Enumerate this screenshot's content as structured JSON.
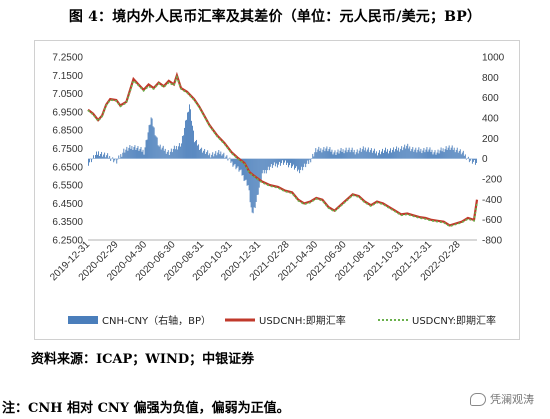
{
  "title": "图 4：境内外人民币汇率及其差价（单位：元人民币/美元；BP）",
  "source": "资料来源：ICAP；WIND；中银证券",
  "note": "注：CNH 相对 CNY 偏强为负值，偏弱为正值。",
  "watermark": "凭澜观涛",
  "chart_data": {
    "type": "bar+line",
    "x_tick_labels": [
      "2019-12-31",
      "2020-02-29",
      "2020-04-30",
      "2020-06-30",
      "2020-08-31",
      "2020-10-31",
      "2020-12-31",
      "2021-02-28",
      "2021-04-30",
      "2021-06-30",
      "2021-08-31",
      "2021-10-31",
      "2021-12-31",
      "2022-02-28"
    ],
    "y_left": {
      "min": 6.25,
      "max": 7.25,
      "ticks": [
        "7.2500",
        "7.1500",
        "7.0500",
        "6.9500",
        "6.8500",
        "6.7500",
        "6.6500",
        "6.5500",
        "6.4500",
        "6.3500",
        "6.2500"
      ]
    },
    "y_right": {
      "min": -800,
      "max": 1000,
      "ticks": [
        "1000",
        "800",
        "600",
        "400",
        "200",
        "0",
        "-200",
        "-400",
        "-600",
        "-800"
      ]
    },
    "series": [
      {
        "name": "CNH-CNY（右轴，BP）",
        "type": "bar",
        "axis": "right",
        "color": "#4a7ebb",
        "points": [
          [
            0,
            -40
          ],
          [
            10,
            60
          ],
          [
            20,
            20
          ],
          [
            28,
            -30
          ],
          [
            35,
            80
          ],
          [
            45,
            120
          ],
          [
            55,
            70
          ],
          [
            62,
            400
          ],
          [
            70,
            120
          ],
          [
            80,
            60
          ],
          [
            92,
            150
          ],
          [
            100,
            540
          ],
          [
            105,
            180
          ],
          [
            112,
            90
          ],
          [
            120,
            40
          ],
          [
            132,
            60
          ],
          [
            142,
            -40
          ],
          [
            150,
            -120
          ],
          [
            158,
            -260
          ],
          [
            162,
            -560
          ],
          [
            166,
            -420
          ],
          [
            172,
            -150
          ],
          [
            180,
            -80
          ],
          [
            192,
            -40
          ],
          [
            200,
            -60
          ],
          [
            208,
            -120
          ],
          [
            212,
            -90
          ],
          [
            218,
            -40
          ],
          [
            225,
            80
          ],
          [
            235,
            100
          ],
          [
            245,
            60
          ],
          [
            255,
            90
          ],
          [
            265,
            70
          ],
          [
            275,
            100
          ],
          [
            285,
            60
          ],
          [
            295,
            80
          ],
          [
            305,
            90
          ],
          [
            315,
            120
          ],
          [
            325,
            80
          ],
          [
            335,
            90
          ],
          [
            345,
            60
          ],
          [
            355,
            110
          ],
          [
            365,
            90
          ],
          [
            372,
            40
          ],
          [
            378,
            -20
          ],
          [
            385,
            -60
          ]
        ]
      },
      {
        "name": "USDCNH:即期汇率",
        "type": "line",
        "axis": "left",
        "color": "#c0392b",
        "points": [
          [
            0,
            6.962
          ],
          [
            5,
            6.94
          ],
          [
            10,
            6.905
          ],
          [
            14,
            6.93
          ],
          [
            18,
            6.99
          ],
          [
            22,
            7.02
          ],
          [
            28,
            7.015
          ],
          [
            32,
            6.985
          ],
          [
            38,
            7.005
          ],
          [
            45,
            7.13
          ],
          [
            50,
            7.1
          ],
          [
            55,
            7.07
          ],
          [
            60,
            7.1
          ],
          [
            65,
            7.08
          ],
          [
            70,
            7.11
          ],
          [
            75,
            7.09
          ],
          [
            80,
            7.12
          ],
          [
            85,
            7.1
          ],
          [
            88,
            7.15
          ],
          [
            92,
            7.08
          ],
          [
            98,
            7.06
          ],
          [
            105,
            7.02
          ],
          [
            110,
            6.98
          ],
          [
            116,
            6.92
          ],
          [
            120,
            6.88
          ],
          [
            128,
            6.82
          ],
          [
            135,
            6.78
          ],
          [
            142,
            6.73
          ],
          [
            148,
            6.7
          ],
          [
            155,
            6.67
          ],
          [
            160,
            6.62
          ],
          [
            166,
            6.595
          ],
          [
            172,
            6.57
          ],
          [
            180,
            6.55
          ],
          [
            188,
            6.54
          ],
          [
            195,
            6.52
          ],
          [
            202,
            6.51
          ],
          [
            208,
            6.47
          ],
          [
            214,
            6.45
          ],
          [
            220,
            6.46
          ],
          [
            226,
            6.48
          ],
          [
            232,
            6.47
          ],
          [
            238,
            6.43
          ],
          [
            244,
            6.41
          ],
          [
            250,
            6.44
          ],
          [
            256,
            6.47
          ],
          [
            262,
            6.5
          ],
          [
            268,
            6.49
          ],
          [
            274,
            6.46
          ],
          [
            280,
            6.44
          ],
          [
            286,
            6.46
          ],
          [
            292,
            6.45
          ],
          [
            298,
            6.43
          ],
          [
            304,
            6.41
          ],
          [
            310,
            6.39
          ],
          [
            316,
            6.395
          ],
          [
            322,
            6.385
          ],
          [
            328,
            6.375
          ],
          [
            334,
            6.37
          ],
          [
            340,
            6.36
          ],
          [
            346,
            6.355
          ],
          [
            352,
            6.35
          ],
          [
            358,
            6.33
          ],
          [
            364,
            6.34
          ],
          [
            370,
            6.35
          ],
          [
            376,
            6.37
          ],
          [
            382,
            6.36
          ],
          [
            385,
            6.47
          ]
        ]
      },
      {
        "name": "USDCNY:即期汇率",
        "type": "line",
        "axis": "left",
        "color": "#6ab04c",
        "dashed": true,
        "points": [
          [
            0,
            6.958
          ],
          [
            5,
            6.935
          ],
          [
            10,
            6.9
          ],
          [
            14,
            6.925
          ],
          [
            18,
            6.985
          ],
          [
            22,
            7.015
          ],
          [
            28,
            7.01
          ],
          [
            32,
            6.98
          ],
          [
            38,
            7.0
          ],
          [
            45,
            7.12
          ],
          [
            50,
            7.095
          ],
          [
            55,
            7.065
          ],
          [
            60,
            7.09
          ],
          [
            65,
            7.075
          ],
          [
            70,
            7.105
          ],
          [
            75,
            7.085
          ],
          [
            80,
            7.11
          ],
          [
            85,
            7.095
          ],
          [
            88,
            7.14
          ],
          [
            92,
            7.075
          ],
          [
            98,
            7.055
          ],
          [
            105,
            7.015
          ],
          [
            110,
            6.975
          ],
          [
            116,
            6.915
          ],
          [
            120,
            6.875
          ],
          [
            128,
            6.815
          ],
          [
            135,
            6.775
          ],
          [
            142,
            6.725
          ],
          [
            148,
            6.695
          ],
          [
            155,
            6.665
          ],
          [
            160,
            6.615
          ],
          [
            166,
            6.59
          ],
          [
            172,
            6.565
          ],
          [
            180,
            6.545
          ],
          [
            188,
            6.535
          ],
          [
            195,
            6.515
          ],
          [
            202,
            6.505
          ],
          [
            208,
            6.465
          ],
          [
            214,
            6.445
          ],
          [
            220,
            6.455
          ],
          [
            226,
            6.475
          ],
          [
            232,
            6.465
          ],
          [
            238,
            6.425
          ],
          [
            244,
            6.405
          ],
          [
            250,
            6.435
          ],
          [
            256,
            6.465
          ],
          [
            262,
            6.495
          ],
          [
            268,
            6.485
          ],
          [
            274,
            6.455
          ],
          [
            280,
            6.435
          ],
          [
            286,
            6.455
          ],
          [
            292,
            6.445
          ],
          [
            298,
            6.425
          ],
          [
            304,
            6.405
          ],
          [
            310,
            6.385
          ],
          [
            316,
            6.39
          ],
          [
            322,
            6.38
          ],
          [
            328,
            6.37
          ],
          [
            334,
            6.365
          ],
          [
            340,
            6.355
          ],
          [
            346,
            6.35
          ],
          [
            352,
            6.345
          ],
          [
            358,
            6.325
          ],
          [
            364,
            6.335
          ],
          [
            370,
            6.345
          ],
          [
            376,
            6.365
          ],
          [
            382,
            6.355
          ],
          [
            385,
            6.45
          ]
        ]
      }
    ],
    "legend": {
      "position": "bottom",
      "entries": [
        "CNH-CNY（右轴，BP）",
        "USDCNH:即期汇率",
        "USDCNY:即期汇率"
      ]
    }
  }
}
